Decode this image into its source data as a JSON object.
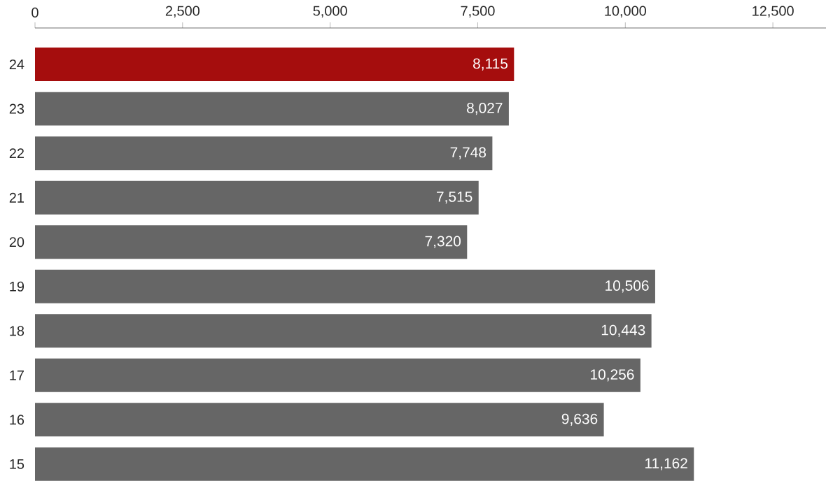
{
  "chart_data": {
    "type": "bar",
    "orientation": "horizontal",
    "categories": [
      "24",
      "23",
      "22",
      "21",
      "20",
      "19",
      "18",
      "17",
      "16",
      "15"
    ],
    "values": [
      8115,
      8027,
      7748,
      7515,
      7320,
      10506,
      10443,
      10256,
      9636,
      11162
    ],
    "colors": [
      "#a50d0d",
      "#666666",
      "#666666",
      "#666666",
      "#666666",
      "#666666",
      "#666666",
      "#666666",
      "#666666",
      "#666666"
    ],
    "xlim": [
      0,
      13400
    ],
    "xticks": [
      0,
      {
        "value": 2500,
        "label": "2,500"
      },
      {
        "value": 5000,
        "label": "5,000"
      },
      {
        "value": 7500,
        "label": "7,500"
      },
      {
        "value": 10000,
        "label": "10,000"
      },
      {
        "value": 12500,
        "label": "12,500"
      }
    ],
    "value_labels": [
      "8,115",
      "8,027",
      "7,748",
      "7,515",
      "7,320",
      "10,506",
      "10,443",
      "10,256",
      "9,636",
      "11,162"
    ]
  }
}
